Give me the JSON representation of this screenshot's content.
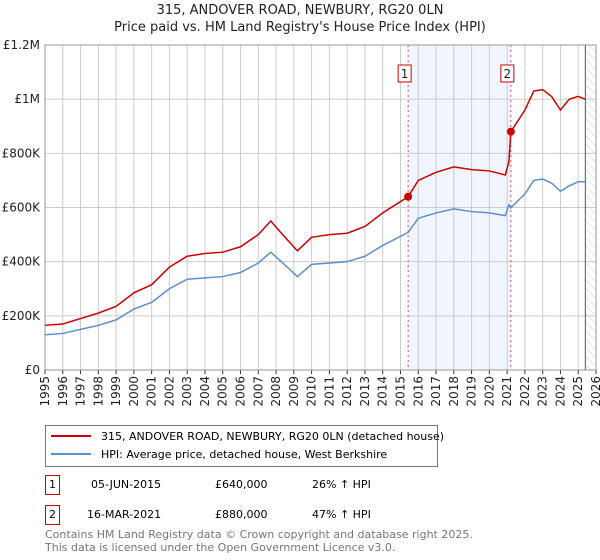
{
  "title": "315, ANDOVER ROAD, NEWBURY, RG20 0LN",
  "subtitle": "Price paid vs. HM Land Registry's House Price Index (HPI)",
  "chart_data": {
    "type": "line",
    "xlim": [
      1995,
      2026
    ],
    "ylim": [
      0,
      1200000
    ],
    "xticks": [
      "1995",
      "1996",
      "1997",
      "1998",
      "1999",
      "2000",
      "2001",
      "2002",
      "2003",
      "2004",
      "2005",
      "2006",
      "2007",
      "2008",
      "2009",
      "2010",
      "2011",
      "2012",
      "2013",
      "2014",
      "2015",
      "2016",
      "2017",
      "2018",
      "2019",
      "2020",
      "2021",
      "2022",
      "2023",
      "2024",
      "2025",
      "2026"
    ],
    "yticks": [
      {
        "v": 0,
        "label": "£0"
      },
      {
        "v": 200000,
        "label": "£200K"
      },
      {
        "v": 400000,
        "label": "£400K"
      },
      {
        "v": 600000,
        "label": "£600K"
      },
      {
        "v": 800000,
        "label": "£800K"
      },
      {
        "v": 1000000,
        "label": "£1M"
      },
      {
        "v": 1200000,
        "label": "£1.2M"
      }
    ],
    "grid": true,
    "shaded_range": [
      2015.43,
      2021.21
    ],
    "forecast_hatch_from": 2025.4,
    "series": [
      {
        "name": "315, ANDOVER ROAD, NEWBURY, RG20 0LN (detached house)",
        "color": "#cc0000",
        "x": [
          1995,
          1996,
          1997,
          1998,
          1999,
          2000,
          2001,
          2002,
          2003,
          2004,
          2005,
          2006,
          2007,
          2007.7,
          2008.3,
          2009.2,
          2010,
          2011,
          2012,
          2013,
          2014,
          2015.43,
          2016,
          2017,
          2018,
          2019,
          2020,
          2020.9,
          2021.1,
          2021.21,
          2022,
          2022.5,
          2023,
          2023.5,
          2024,
          2024.5,
          2025,
          2025.4
        ],
        "y": [
          165000,
          170000,
          190000,
          210000,
          235000,
          285000,
          315000,
          380000,
          420000,
          430000,
          435000,
          455000,
          500000,
          550000,
          505000,
          440000,
          490000,
          500000,
          505000,
          530000,
          580000,
          640000,
          700000,
          730000,
          750000,
          740000,
          735000,
          720000,
          770000,
          880000,
          960000,
          1030000,
          1035000,
          1010000,
          960000,
          1000000,
          1010000,
          1000000
        ]
      },
      {
        "name": "HPI: Average price, detached house, West Berkshire",
        "color": "#5b8fd0",
        "x": [
          1995,
          1996,
          1997,
          1998,
          1999,
          2000,
          2001,
          2002,
          2003,
          2004,
          2005,
          2006,
          2007,
          2007.7,
          2008.3,
          2009.2,
          2010,
          2011,
          2012,
          2013,
          2014,
          2015.43,
          2016,
          2017,
          2018,
          2019,
          2020,
          2020.9,
          2021.1,
          2021.21,
          2022,
          2022.5,
          2023,
          2023.5,
          2024,
          2024.5,
          2025,
          2025.4
        ],
        "y": [
          130000,
          135000,
          150000,
          165000,
          185000,
          225000,
          250000,
          300000,
          335000,
          340000,
          345000,
          360000,
          395000,
          435000,
          400000,
          345000,
          390000,
          395000,
          400000,
          420000,
          460000,
          508000,
          560000,
          580000,
          595000,
          585000,
          580000,
          570000,
          610000,
          599000,
          650000,
          700000,
          705000,
          690000,
          660000,
          680000,
          695000,
          695000
        ]
      }
    ],
    "markers": [
      {
        "label": "1",
        "x": 2015.43,
        "y": 640000
      },
      {
        "label": "2",
        "x": 2021.21,
        "y": 880000
      }
    ]
  },
  "legend": {
    "red": "315, ANDOVER ROAD, NEWBURY, RG20 0LN (detached house)",
    "blue": "HPI: Average price, detached house, West Berkshire"
  },
  "transactions": [
    {
      "num": "1",
      "date": "05-JUN-2015",
      "price": "£640,000",
      "hpi": "26% ↑ HPI"
    },
    {
      "num": "2",
      "date": "16-MAR-2021",
      "price": "£880,000",
      "hpi": "47% ↑ HPI"
    }
  ],
  "footer": {
    "line1": "Contains HM Land Registry data © Crown copyright and database right 2025.",
    "line2": "This data is licensed under the Open Government Licence v3.0."
  }
}
